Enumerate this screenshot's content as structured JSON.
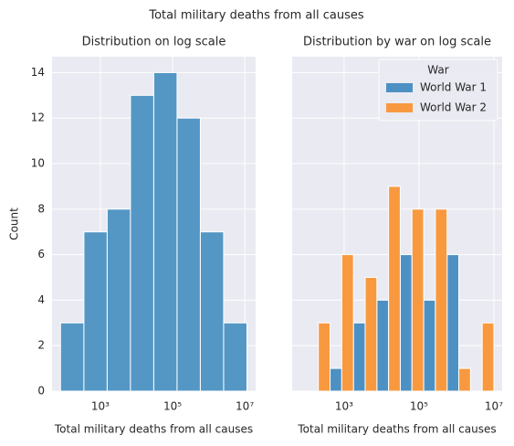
{
  "title": "Total military deaths from all causes",
  "chart_data": [
    {
      "type": "histogram",
      "title": "Distribution on log scale",
      "xlabel": "Total military deaths from all causes",
      "ylabel": "Count",
      "bins": [
        79,
        351,
        1549,
        6839,
        30200,
        133352,
        588844,
        2600160,
        11481536
      ],
      "values": [
        3,
        7,
        8,
        13,
        14,
        12,
        7,
        3
      ],
      "color": "#5497c5",
      "xscale": "log",
      "xlim": [
        46,
        20000000
      ],
      "xticks": [
        {
          "value": 1000,
          "label": "10³"
        },
        {
          "value": 100000,
          "label": "10⁵"
        },
        {
          "value": 10000000,
          "label": "10⁷"
        }
      ],
      "ylim": [
        0,
        14.7
      ],
      "yticks": [
        0,
        2,
        4,
        6,
        8,
        10,
        12,
        14
      ],
      "grid": true
    },
    {
      "type": "histogram",
      "multiple": "dodge",
      "title": "Distribution by war on log scale",
      "xlabel": "Total military deaths from all causes",
      "bins": [
        100,
        422,
        1778,
        7499,
        31623,
        133352,
        562341,
        2371374,
        10000000
      ],
      "series": [
        {
          "name": "World War 1",
          "color": "#4d91c4",
          "values": [
            0,
            1,
            3,
            4,
            6,
            4,
            6,
            0
          ]
        },
        {
          "name": "World War 2",
          "color": "#f8993f",
          "values": [
            3,
            6,
            5,
            9,
            8,
            8,
            1,
            3
          ]
        }
      ],
      "legend_title": "War",
      "legend": "upper right",
      "xscale": "log",
      "xlim": [
        41,
        16600000
      ],
      "xticks": [
        {
          "value": 1000,
          "label": "10³"
        },
        {
          "value": 100000,
          "label": "10⁵"
        },
        {
          "value": 10000000,
          "label": "10⁷"
        }
      ],
      "ylim": [
        0,
        14.7
      ],
      "yticks": [
        0,
        2,
        4,
        6,
        8,
        10,
        12,
        14
      ],
      "show_yticklabels": false,
      "grid": true
    }
  ]
}
